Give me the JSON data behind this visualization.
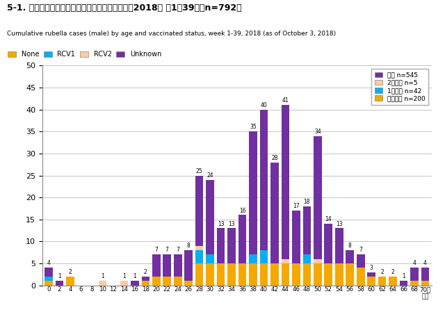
{
  "title": "5-1. 年齢群別接種歴別風しん累積報告数（男性）2018年 第1～39週（n=792）",
  "subtitle": "Cumulative rubella cases (male) by age and vaccinated status, week 1-39, 2018 (as of October 3, 2018)",
  "legend_outside_labels": [
    "None",
    "RCV1",
    "RCV2",
    "Unknown"
  ],
  "legend_inside_labels": [
    "不明 n=545",
    "2回接種 n=5",
    "1回接種 n=42",
    "接種なし n=200"
  ],
  "color_none": "#F5A800",
  "color_rcv1": "#00B0F0",
  "color_rcv2": "#FFCBA4",
  "color_unknown": "#7030A0",
  "age_labels": [
    "0",
    "2",
    "4",
    "6",
    "8",
    "10",
    "12",
    "14",
    "16",
    "18",
    "20",
    "22",
    "24",
    "26",
    "28",
    "30",
    "32",
    "34",
    "36",
    "38",
    "40",
    "42",
    "44",
    "46",
    "48",
    "50",
    "52",
    "54",
    "56",
    "58",
    "60",
    "62",
    "64",
    "66",
    "68",
    "70歳\n以上"
  ],
  "none": [
    1,
    0,
    2,
    0,
    0,
    0,
    0,
    0,
    0,
    1,
    2,
    2,
    2,
    1,
    5,
    5,
    5,
    5,
    5,
    5,
    5,
    5,
    5,
    5,
    5,
    5,
    5,
    5,
    5,
    4,
    2,
    2,
    2,
    0,
    1,
    1
  ],
  "rcv1": [
    1,
    0,
    0,
    0,
    0,
    0,
    0,
    0,
    0,
    0,
    0,
    0,
    0,
    0,
    3,
    2,
    0,
    0,
    0,
    2,
    3,
    0,
    0,
    0,
    2,
    0,
    0,
    0,
    0,
    0,
    0,
    0,
    0,
    0,
    0,
    0
  ],
  "rcv2": [
    0,
    0,
    0,
    0,
    0,
    1,
    0,
    1,
    0,
    0,
    0,
    0,
    0,
    0,
    1,
    0,
    0,
    0,
    0,
    0,
    0,
    0,
    1,
    0,
    0,
    1,
    0,
    0,
    0,
    0,
    0,
    0,
    0,
    0,
    0,
    0
  ],
  "unknown": [
    2,
    1,
    0,
    0,
    0,
    0,
    0,
    0,
    1,
    1,
    5,
    5,
    5,
    7,
    16,
    17,
    8,
    8,
    11,
    28,
    32,
    23,
    35,
    12,
    11,
    28,
    9,
    8,
    3,
    3,
    1,
    0,
    0,
    1,
    3,
    3
  ],
  "totals": [
    4,
    1,
    2,
    0,
    0,
    1,
    0,
    1,
    1,
    2,
    7,
    7,
    7,
    8,
    25,
    24,
    13,
    13,
    16,
    35,
    40,
    28,
    41,
    17,
    18,
    34,
    14,
    13,
    8,
    7,
    3,
    2,
    2,
    1,
    4,
    4
  ],
  "ylim": [
    0,
    50
  ],
  "yticks": [
    0,
    5,
    10,
    15,
    20,
    25,
    30,
    35,
    40,
    45,
    50
  ]
}
